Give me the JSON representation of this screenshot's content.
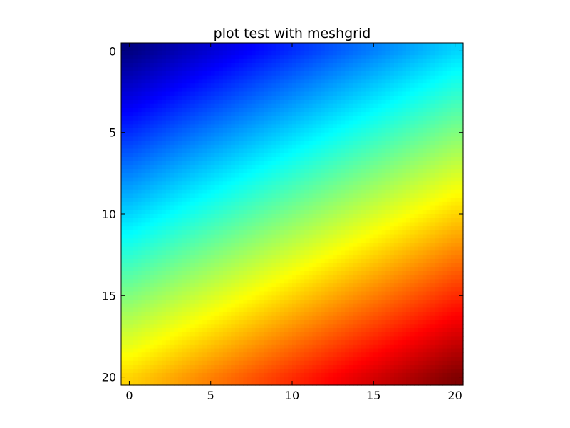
{
  "chart_data": {
    "type": "heatmap",
    "title": "plot test with meshgrid",
    "xlabel": "",
    "ylabel": "",
    "colormap": "jet",
    "x_ticks": [
      0,
      5,
      10,
      15,
      20
    ],
    "y_ticks": [
      0,
      5,
      10,
      15,
      20
    ],
    "x_tick_labels": [
      "0",
      "5",
      "10",
      "15",
      "20"
    ],
    "y_tick_labels": [
      "0",
      "5",
      "10",
      "15",
      "20"
    ],
    "xlim": [
      -0.5,
      20.5
    ],
    "ylim": [
      20.5,
      -0.5
    ],
    "y_inverted": true,
    "grid": false,
    "value_formula": "z = x + 2*y on a 21x21 meshgrid (x, y = 0..20)",
    "value_range": [
      0,
      60
    ]
  }
}
